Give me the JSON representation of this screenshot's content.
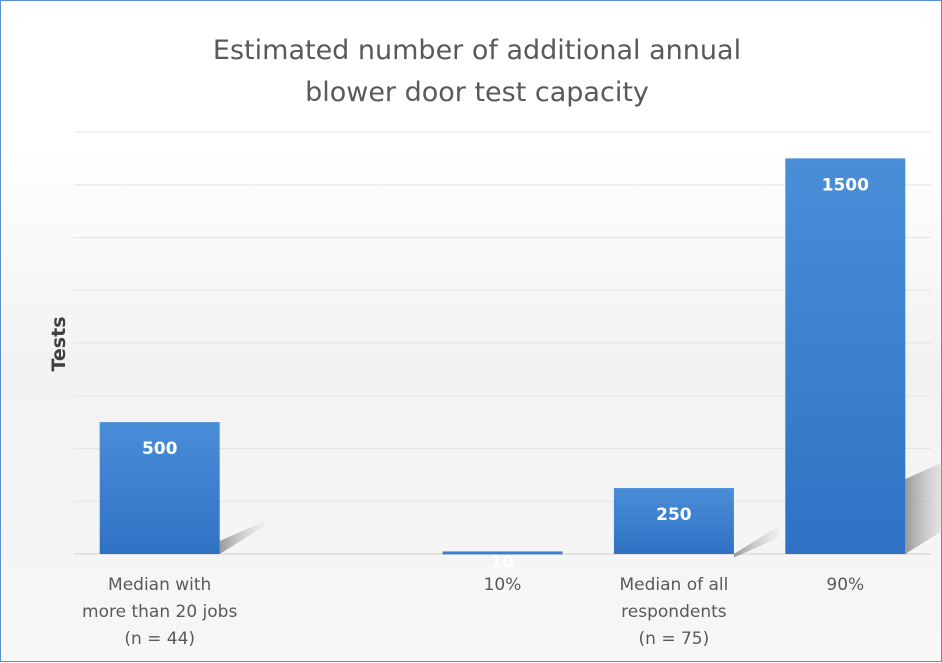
{
  "chart_data": {
    "type": "bar",
    "title": "Estimated number of additional annual blower door test capacity",
    "title_lines": [
      "Estimated number of additional annual",
      "blower door test capacity"
    ],
    "xlabel": "",
    "ylabel": "Tests",
    "categories": [
      [
        "Median with",
        "more than 20 jobs",
        "(n = 44)"
      ],
      [
        ""
      ],
      [
        "10%"
      ],
      [
        "Median of all",
        "respondents",
        "(n = 75)"
      ],
      [
        "90%"
      ]
    ],
    "values": [
      500,
      null,
      10,
      250,
      1500
    ],
    "data_labels": [
      "500",
      "",
      "10",
      "250",
      "1500"
    ],
    "ylim": [
      0,
      1600
    ],
    "gridline_step": 200,
    "grid": true,
    "bar_color": "#4a8ed8",
    "bar_color_dark": "#2f72c4",
    "legend": "none"
  }
}
